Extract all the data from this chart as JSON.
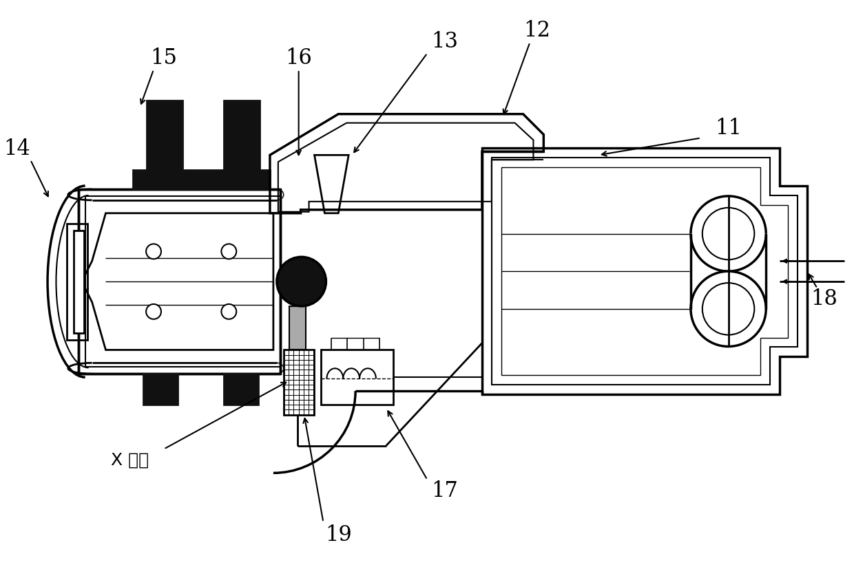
{
  "bg_color": "#ffffff",
  "line_color": "#000000",
  "dark_fill": "#111111",
  "figsize": [
    12.4,
    8.54
  ],
  "dpi": 100,
  "xray_label": "X 射线"
}
